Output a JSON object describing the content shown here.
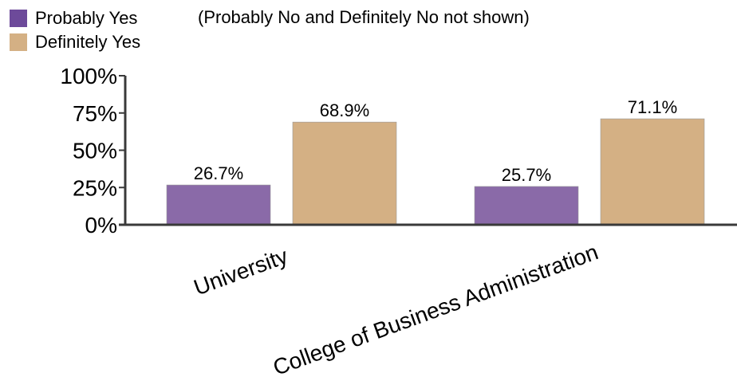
{
  "note": "(Probably No and Definitely No not shown)",
  "chart_data": {
    "type": "bar",
    "categories": [
      "University",
      "College of Business Administration"
    ],
    "series": [
      {
        "name": "Probably Yes",
        "values": [
          26.7,
          25.7
        ],
        "color": "#8a6aa8",
        "legend_color": "#6d4a9a"
      },
      {
        "name": "Definitely Yes",
        "values": [
          68.9,
          71.1
        ],
        "color": "#d4b084",
        "legend_color": "#d4b084"
      }
    ],
    "value_labels": [
      [
        "26.7%",
        "25.7%"
      ],
      [
        "68.9%",
        "71.1%"
      ]
    ],
    "ylim": [
      0,
      100
    ],
    "yticks": [
      0,
      25,
      50,
      75,
      100
    ],
    "ytick_labels": [
      "0%",
      "25%",
      "50%",
      "75%",
      "100%"
    ],
    "legend_position": "top-left",
    "grid": false
  }
}
